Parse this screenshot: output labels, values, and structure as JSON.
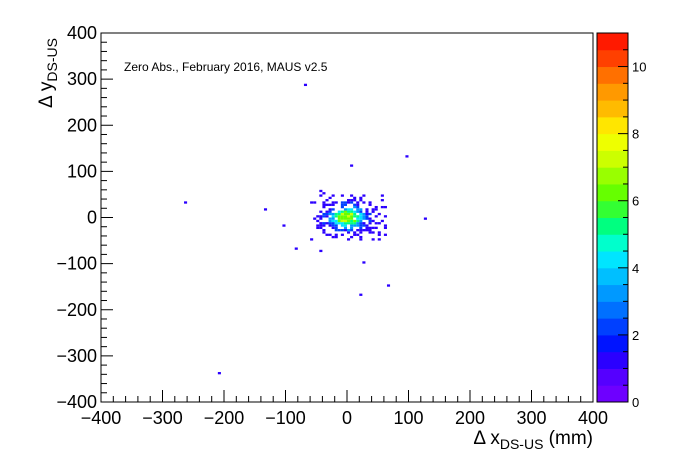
{
  "chart_data": {
    "type": "heatmap",
    "annotation": "Zero Abs., February 2016, MAUS v2.5",
    "xlabel": {
      "prefix": "Δ x",
      "sub": "DS-US",
      "suffix": " (mm)"
    },
    "ylabel": {
      "prefix": "Δ y",
      "sub": "DS-US"
    },
    "xlim": [
      -400,
      400
    ],
    "ylim": [
      -400,
      400
    ],
    "x_ticks": [
      -400,
      -300,
      -200,
      -100,
      0,
      100,
      200,
      300,
      400
    ],
    "y_ticks": [
      -400,
      -300,
      -200,
      -100,
      0,
      100,
      200,
      300,
      400
    ],
    "x_tick_labels": [
      "−400",
      "−300",
      "−200",
      "−100",
      "0",
      "100",
      "200",
      "300",
      "400"
    ],
    "y_tick_labels": [
      "−400",
      "−300",
      "−200",
      "−100",
      "0",
      "100",
      "200",
      "300",
      "400"
    ],
    "bin_size": 5,
    "z_range": [
      0,
      11
    ],
    "z_ticks": [
      0,
      2,
      4,
      6,
      8,
      10
    ],
    "z_tick_labels": [
      "0",
      "2",
      "4",
      "6",
      "8",
      "10"
    ],
    "palette": [
      "#6e00ff",
      "#5500ff",
      "#2b00ff",
      "#0014ff",
      "#0040ff",
      "#0070ff",
      "#0099ff",
      "#00bfff",
      "#00e5ff",
      "#00ffcc",
      "#00ff80",
      "#33ff33",
      "#66ff00",
      "#99ff00",
      "#ccff00",
      "#eeff00",
      "#ffe600",
      "#ffbb00",
      "#ff9900",
      "#ff7000",
      "#ff4000",
      "#ff1a00"
    ],
    "isolated_points": [
      [
        -70,
        288
      ],
      [
        97,
        132
      ],
      [
        5,
        110
      ],
      [
        -265,
        30
      ],
      [
        -133,
        18
      ],
      [
        -105,
        -20
      ],
      [
        -83,
        -67
      ],
      [
        -42,
        -75
      ],
      [
        125,
        -5
      ],
      [
        43,
        -23
      ],
      [
        27,
        -97
      ],
      [
        68,
        -147
      ],
      [
        23,
        -167
      ],
      [
        -207,
        -337
      ]
    ]
  }
}
